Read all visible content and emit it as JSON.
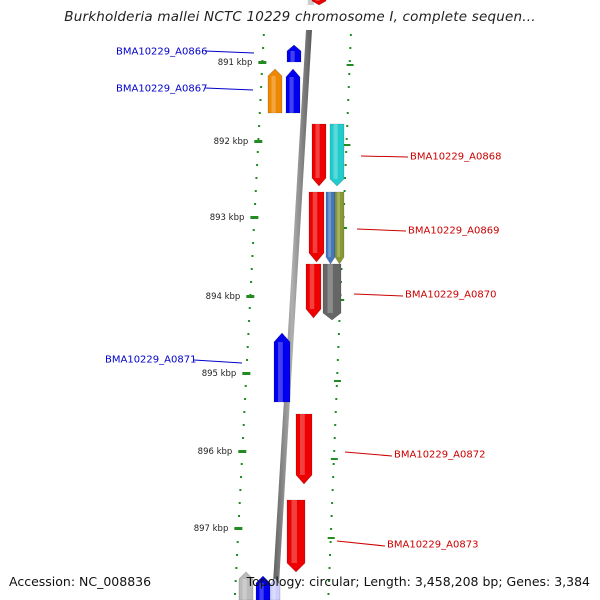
{
  "title": "Burkholderia mallei NCTC 10229 chromosome I, complete sequen...",
  "footer": {
    "accession": "Accession: NC_008836",
    "summary": "Topology: circular; Length: 3,458,208 bp; Genes: 3,384"
  },
  "scale": {
    "ticks": [
      {
        "label": "891 kbp"
      },
      {
        "label": "892 kbp"
      },
      {
        "label": "893 kbp"
      },
      {
        "label": "894 kbp"
      },
      {
        "label": "895 kbp"
      },
      {
        "label": "896 kbp"
      },
      {
        "label": "897 kbp"
      }
    ]
  },
  "colors": {
    "backbone": "#808080",
    "forward_label": "#0000cc",
    "reverse_label": "#cc0000",
    "tick": "#228b22",
    "blue": "#0000ee",
    "orange": "#ee8800",
    "red": "#ee0000",
    "cyan": "#22cccc",
    "steel": "#4477bb",
    "olive": "#889933",
    "gray": "#666666"
  },
  "gene_labels": [
    {
      "name": "BMA10229_A0866",
      "strand": "forward"
    },
    {
      "name": "BMA10229_A0867",
      "strand": "forward"
    },
    {
      "name": "BMA10229_A0868",
      "strand": "reverse"
    },
    {
      "name": "BMA10229_A0869",
      "strand": "reverse"
    },
    {
      "name": "BMA10229_A0870",
      "strand": "reverse"
    },
    {
      "name": "BMA10229_A0871",
      "strand": "forward"
    },
    {
      "name": "BMA10229_A0872",
      "strand": "reverse"
    },
    {
      "name": "BMA10229_A0873",
      "strand": "reverse"
    }
  ]
}
